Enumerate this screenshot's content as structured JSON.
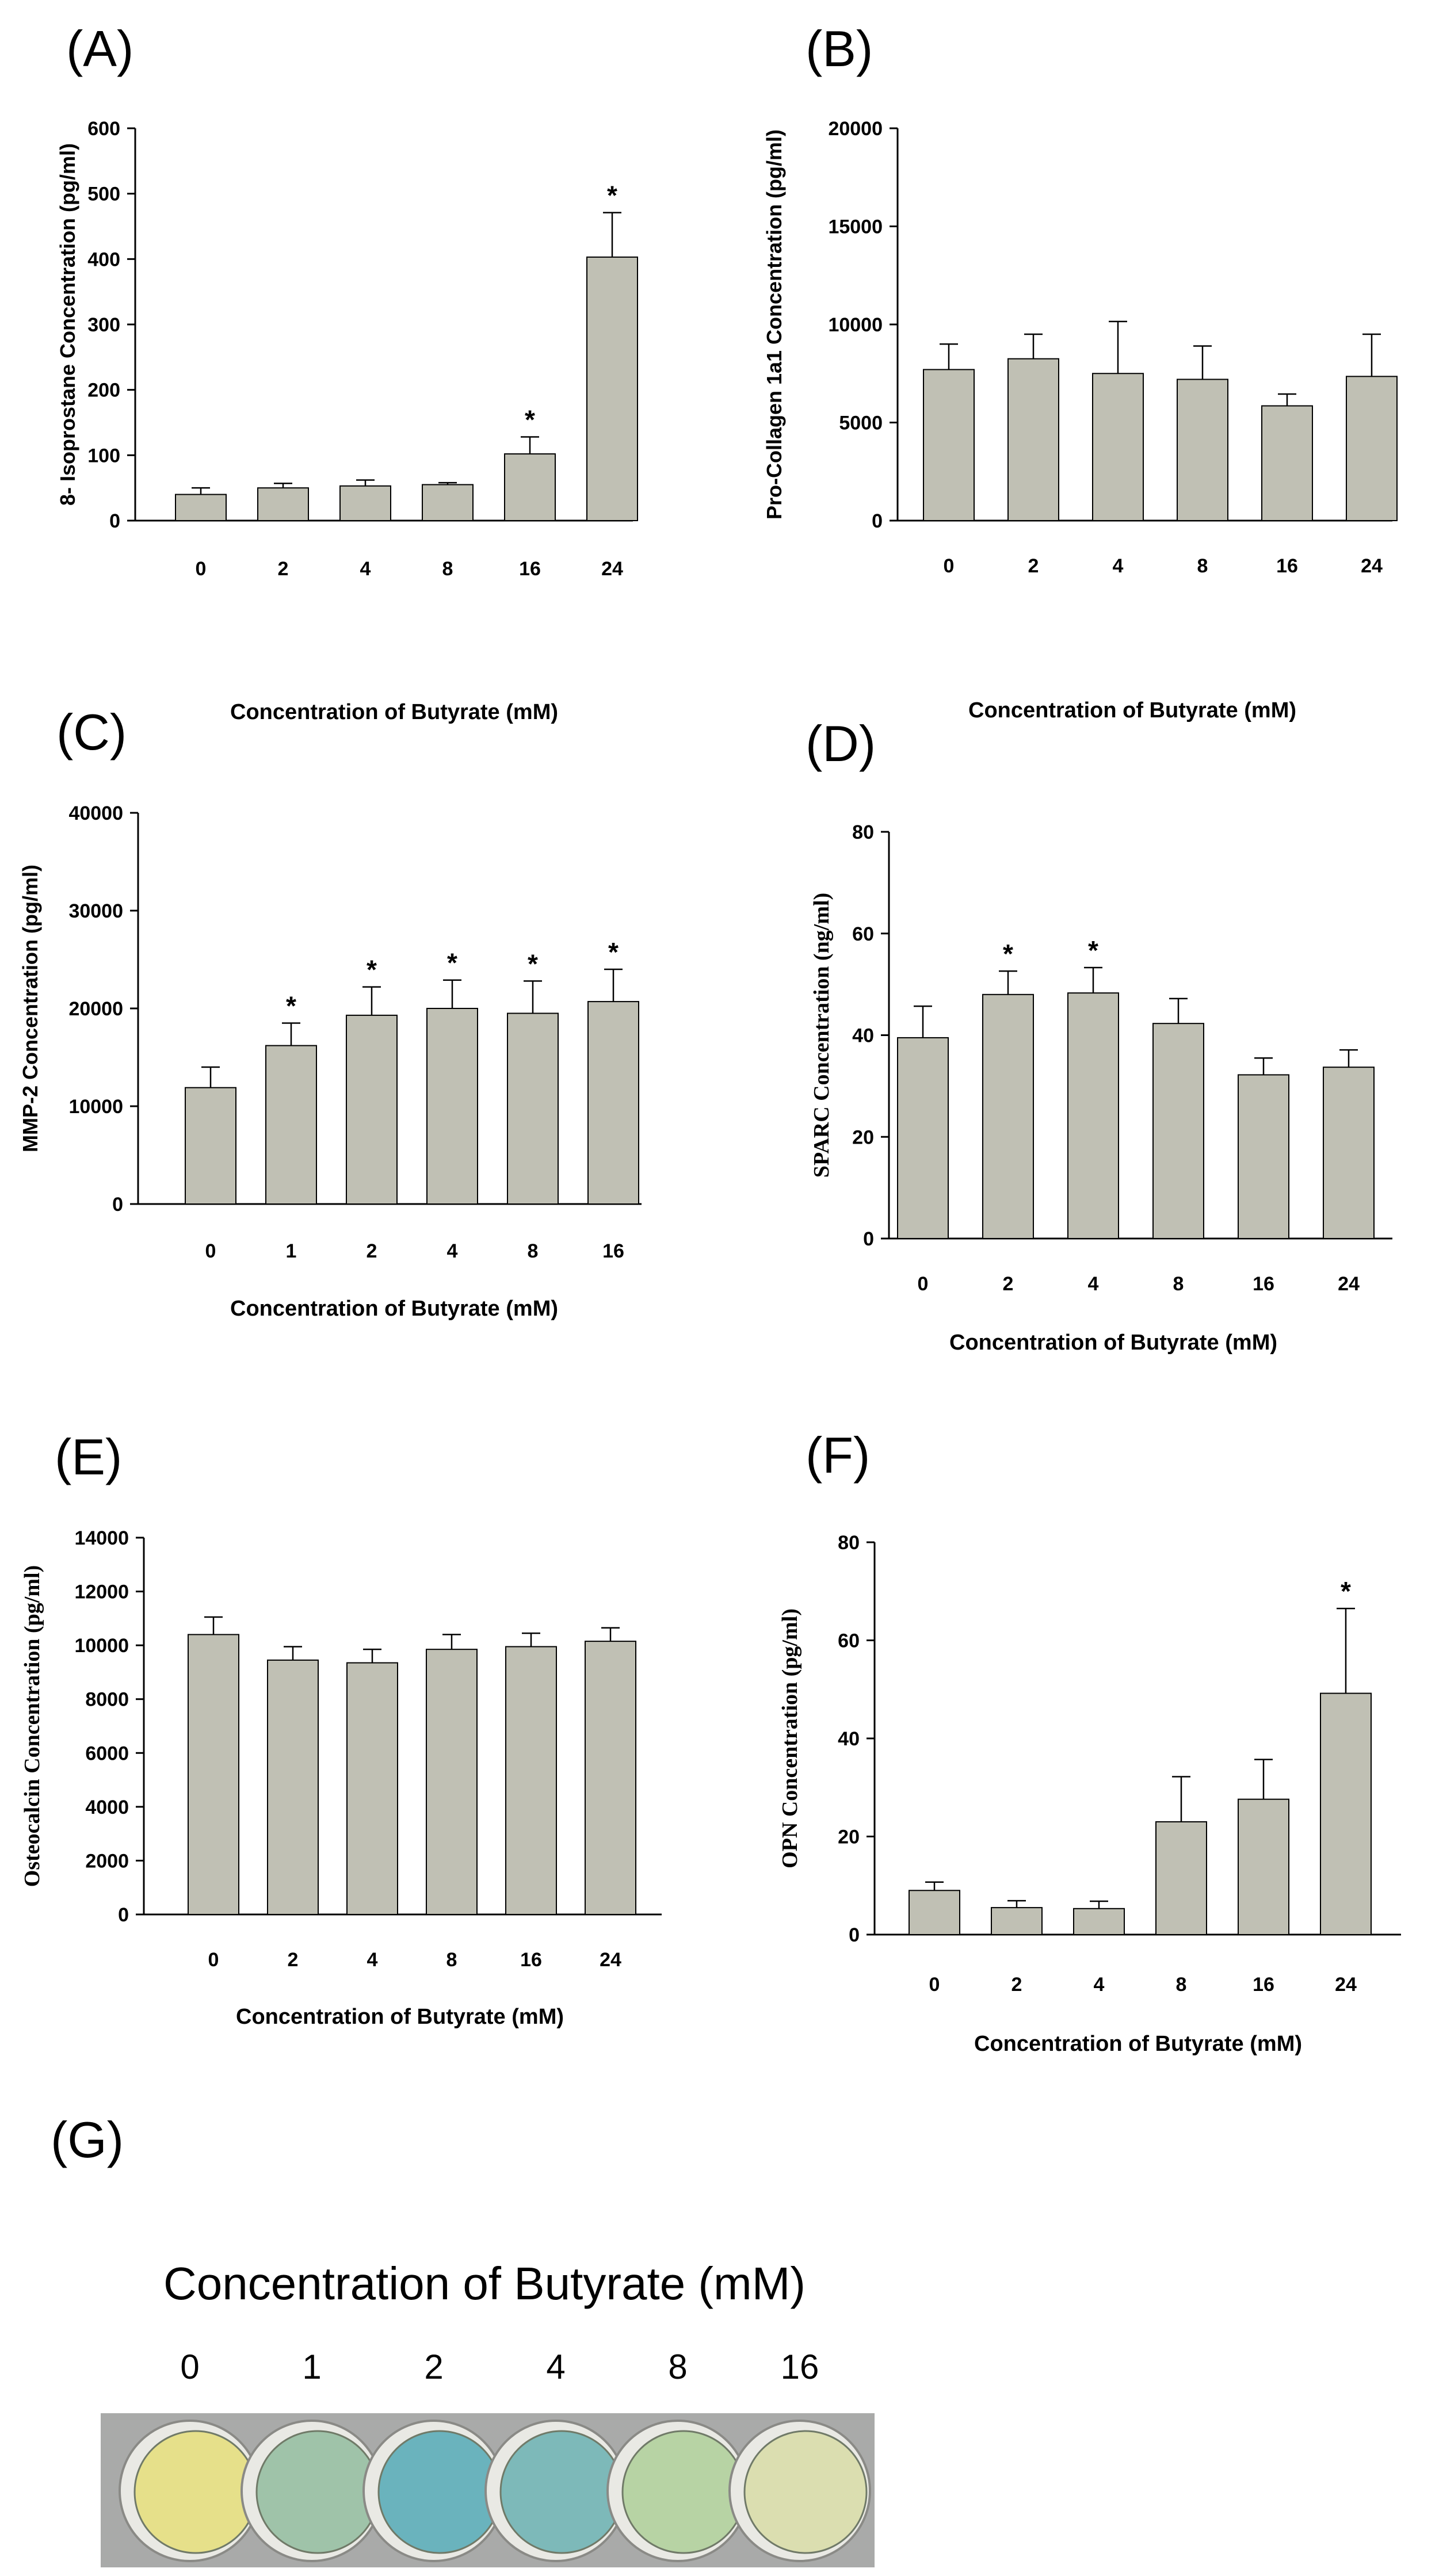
{
  "chart_data": [
    {
      "panel": "(A)",
      "type": "bar",
      "categories": [
        "0",
        "2",
        "4",
        "8",
        "16",
        "24"
      ],
      "values": [
        40,
        50,
        53,
        55,
        102,
        403
      ],
      "errors": [
        10,
        7,
        9,
        3,
        26,
        68
      ],
      "significant": [
        false,
        false,
        false,
        false,
        true,
        true
      ],
      "significance_marker": "*",
      "ylabel": "8- Isoprostane Concentration (pg/ml)",
      "xlabel": "Concentration of Butyrate (mM)",
      "ylim": [
        0,
        600
      ],
      "yticks": [
        "0",
        "100",
        "200",
        "300",
        "400",
        "500",
        "600"
      ]
    },
    {
      "panel": "(B)",
      "type": "bar",
      "categories": [
        "0",
        "2",
        "4",
        "8",
        "16",
        "24"
      ],
      "values": [
        7700,
        8250,
        7500,
        7200,
        5850,
        7350
      ],
      "errors": [
        1300,
        1250,
        2650,
        1700,
        600,
        2150
      ],
      "significant": [
        false,
        false,
        false,
        false,
        false,
        false
      ],
      "significance_marker": "*",
      "ylabel": "Pro-Collagen 1a1 Concentration (pg/ml)",
      "xlabel": "Concentration of Butyrate (mM)",
      "ylim": [
        0,
        20000
      ],
      "yticks": [
        "0",
        "5000",
        "10000",
        "15000",
        "20000"
      ]
    },
    {
      "panel": "(C)",
      "type": "bar",
      "categories": [
        "0",
        "1",
        "2",
        "4",
        "8",
        "16"
      ],
      "values": [
        11900,
        16200,
        19300,
        20000,
        19500,
        20700
      ],
      "errors": [
        2100,
        2300,
        2900,
        2900,
        3300,
        3300
      ],
      "significant": [
        false,
        true,
        true,
        true,
        true,
        true
      ],
      "significance_marker": "*",
      "ylabel": "MMP-2 Concentration (pg/ml)",
      "xlabel": "Concentration of Butyrate (mM)",
      "ylim": [
        0,
        40000
      ],
      "yticks": [
        "0",
        "10000",
        "20000",
        "30000",
        "40000"
      ]
    },
    {
      "panel": "(D)",
      "type": "bar",
      "categories": [
        "0",
        "2",
        "4",
        "8",
        "16",
        "24"
      ],
      "values": [
        39.5,
        48,
        48.3,
        42.3,
        32.2,
        33.7
      ],
      "errors": [
        6.2,
        4.6,
        5,
        4.9,
        3.3,
        3.4
      ],
      "significant": [
        false,
        true,
        true,
        false,
        false,
        false
      ],
      "significance_marker": "*",
      "ylabel": "SPARC Concentration (ng/ml)",
      "xlabel": "Concentration of Butyrate (mM)",
      "ylim": [
        0,
        80
      ],
      "yticks": [
        "0",
        "20",
        "40",
        "60",
        "80"
      ]
    },
    {
      "panel": "(E)",
      "type": "bar",
      "categories": [
        "0",
        "2",
        "4",
        "8",
        "16",
        "24"
      ],
      "values": [
        10400,
        9450,
        9350,
        9850,
        9950,
        10150
      ],
      "errors": [
        650,
        500,
        500,
        550,
        500,
        500
      ],
      "significant": [
        false,
        false,
        false,
        false,
        false,
        false
      ],
      "significance_marker": "*",
      "ylabel": "Osteocalcin Concentration (pg/ml)",
      "xlabel": "Concentration of Butyrate (mM)",
      "ylim": [
        0,
        14000
      ],
      "yticks": [
        "0",
        "2000",
        "4000",
        "6000",
        "8000",
        "10000",
        "12000",
        "14000"
      ]
    },
    {
      "panel": "(F)",
      "type": "bar",
      "categories": [
        "0",
        "2",
        "4",
        "8",
        "16",
        "24"
      ],
      "values": [
        9,
        5.5,
        5.3,
        23,
        27.6,
        49.2
      ],
      "errors": [
        1.7,
        1.4,
        1.5,
        9.2,
        8.1,
        17.3
      ],
      "significant": [
        false,
        false,
        false,
        false,
        false,
        true
      ],
      "significance_marker": "*",
      "ylabel": "OPN Concentration (pg/ml)",
      "xlabel": "Concentration of Butyrate (mM)",
      "ylim": [
        0,
        80
      ],
      "yticks": [
        "0",
        "20",
        "40",
        "60",
        "80"
      ]
    }
  ],
  "panel_g": {
    "label": "(G)",
    "title": "Concentration of Butyrate (mM)",
    "wells": [
      "0",
      "1",
      "2",
      "4",
      "8",
      "16"
    ],
    "well_colors": [
      "#e6e08a",
      "#9fc3a9",
      "#6ab3bd",
      "#7db9b9",
      "#b7d3a4",
      "#dbdeb0"
    ]
  },
  "colors": {
    "bar_fill": "#c0c0b4",
    "bar_stroke": "#000000",
    "plate": "#a9aaa9"
  }
}
